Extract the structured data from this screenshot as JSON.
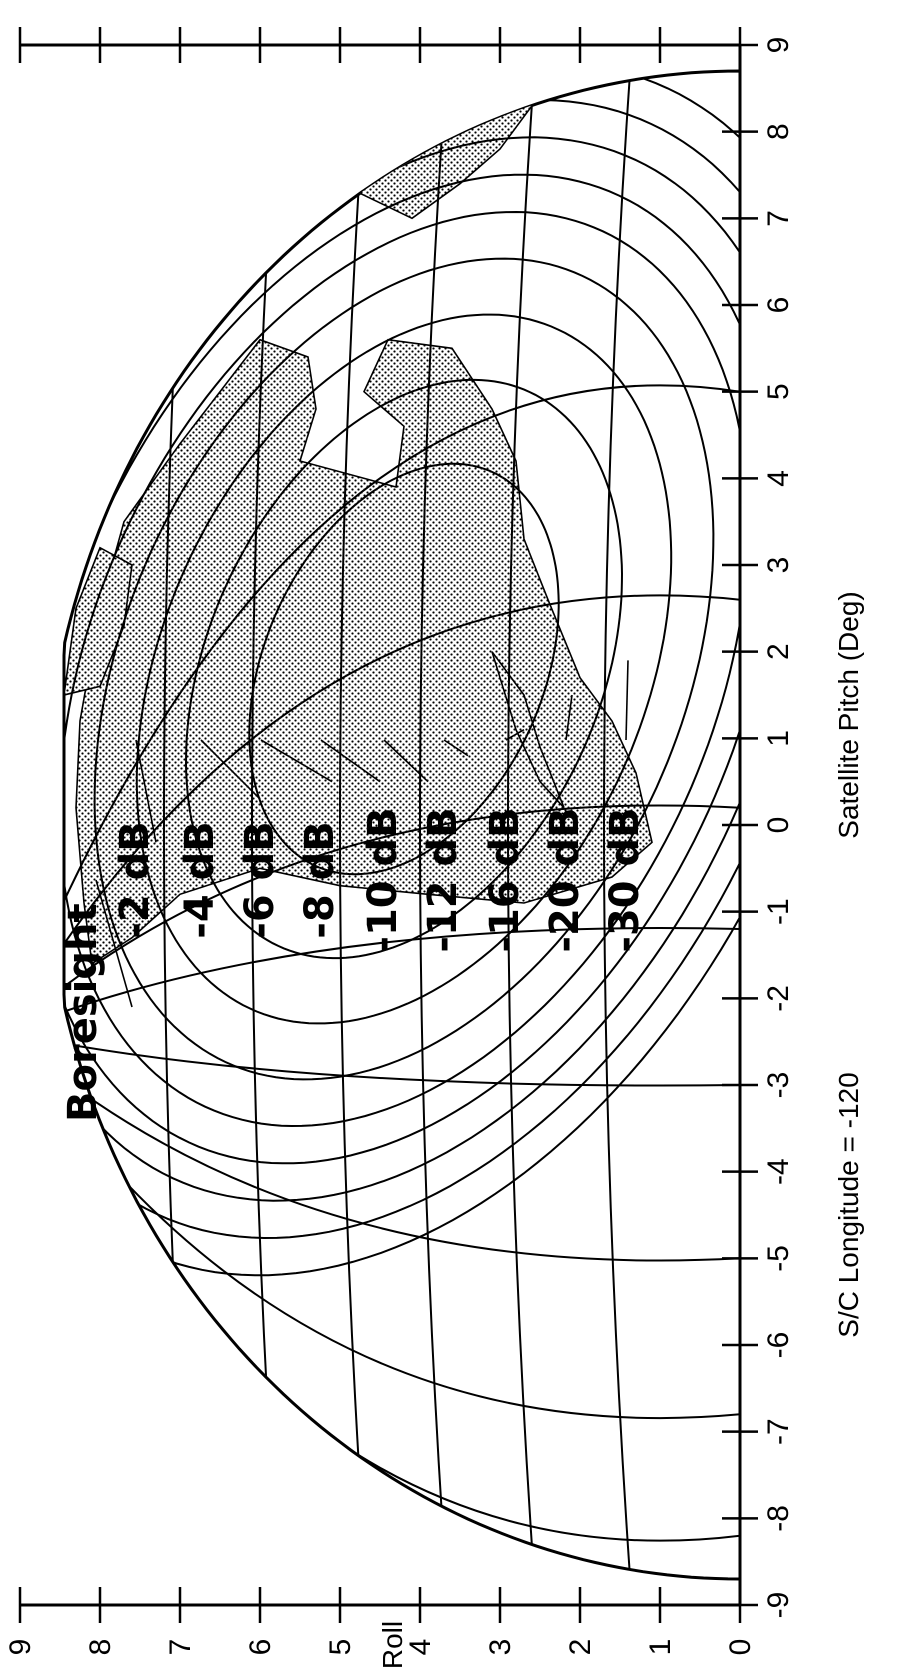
{
  "chart_data": {
    "type": "contour",
    "xlabel": "Satellite Pitch (Deg)",
    "ylabel": "Roll",
    "subtitle": "S/C Longitude = -120",
    "annotation": "Boresight",
    "xlim": [
      -9,
      9
    ],
    "ylim": [
      0,
      9
    ],
    "x_ticks": [
      "-9",
      "-8",
      "-7",
      "-6",
      "-5",
      "-4",
      "-3",
      "-2",
      "-1",
      "0",
      "1",
      "2",
      "3",
      "4",
      "5",
      "6",
      "7",
      "8",
      "9"
    ],
    "y_ticks": [
      "0",
      "1",
      "2",
      "3",
      "4",
      "5",
      "6",
      "7",
      "8",
      "9"
    ],
    "boresight": {
      "pitch": -2.1,
      "roll": 7.6
    },
    "contours": [
      {
        "label": "-2 dB",
        "radius_deg": 2.2
      },
      {
        "label": "-4 dB",
        "radius_deg": 3.1
      },
      {
        "label": "-6 dB",
        "radius_deg": 3.8
      },
      {
        "label": "-8 dB",
        "radius_deg": 4.4
      },
      {
        "label": "-10 dB",
        "radius_deg": 4.9
      },
      {
        "label": "-12 dB",
        "radius_deg": 5.3
      },
      {
        "label": "-16 dB",
        "radius_deg": 5.7
      },
      {
        "label": "-20 dB",
        "radius_deg": 6.1
      },
      {
        "label": "-30 dB",
        "radius_deg": 6.5
      }
    ],
    "earth_disc_radius_deg": 8.7,
    "grid": true
  }
}
